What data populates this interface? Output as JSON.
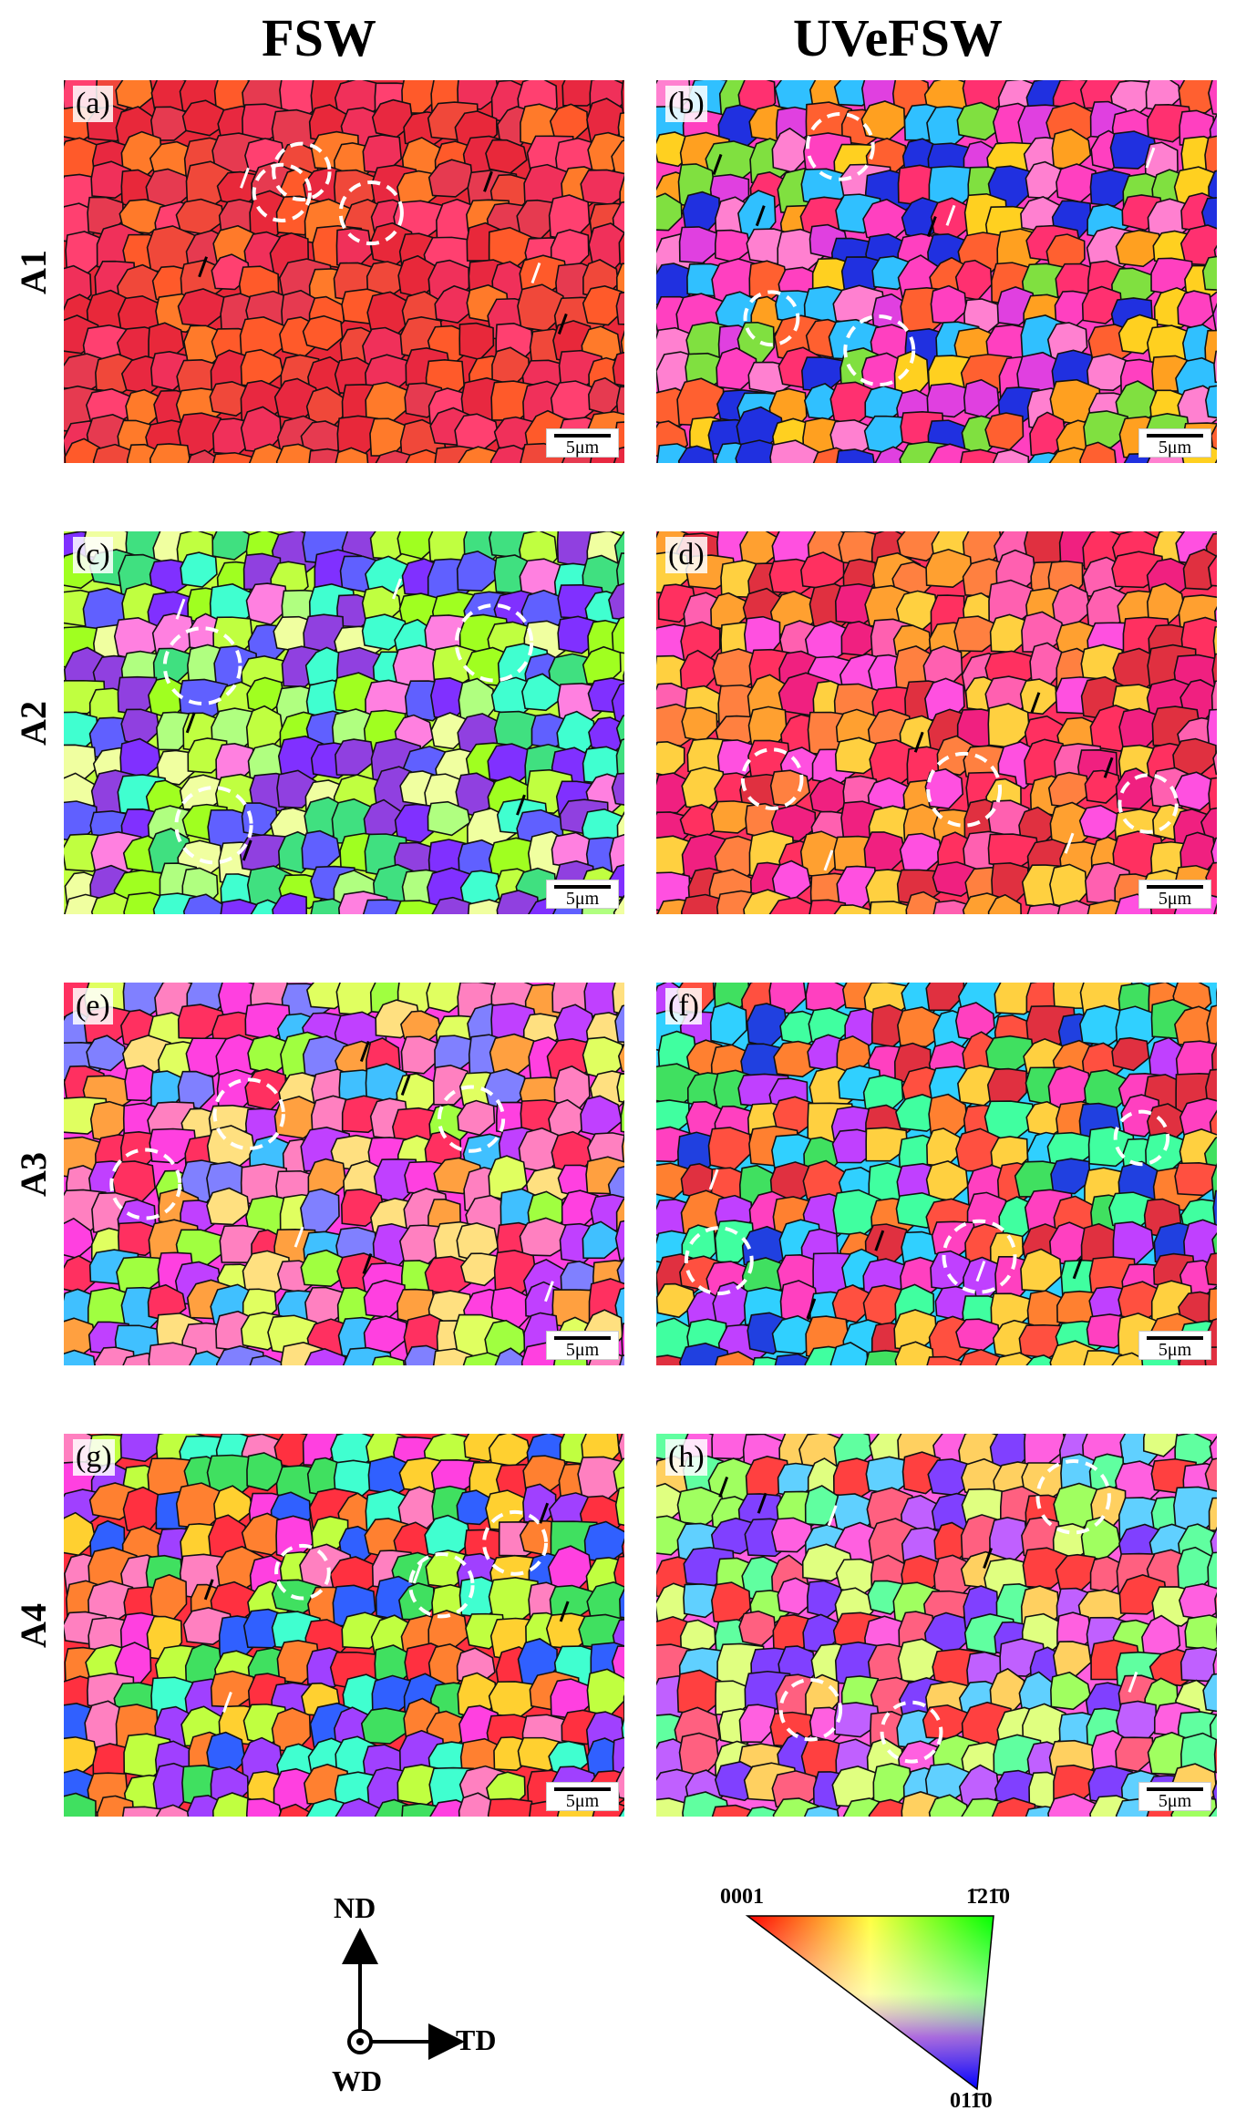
{
  "headers": {
    "left": "FSW",
    "right": "UVeFSW"
  },
  "rows": [
    "A1",
    "A2",
    "A3",
    "A4"
  ],
  "panels": [
    {
      "label": "(a)",
      "scale": "5μm",
      "palette": [
        "#e8283a",
        "#f0483a",
        "#ff5a2a",
        "#e63a50",
        "#ff7a2a",
        "#f0305a",
        "#ff4070",
        "#e82840"
      ]
    },
    {
      "label": "(b)",
      "scale": "5μm",
      "palette": [
        "#ff40c0",
        "#ffd020",
        "#ff6030",
        "#e040e0",
        "#ff3070",
        "#30c0ff",
        "#2030e0",
        "#ffa020",
        "#80e040",
        "#ff80d0"
      ]
    },
    {
      "label": "(c)",
      "scale": "5μm",
      "palette": [
        "#c0ff40",
        "#8030ff",
        "#40e080",
        "#b0ff80",
        "#6060ff",
        "#ff80e0",
        "#a0ff20",
        "#40ffd0",
        "#9040e0",
        "#f0ffa0"
      ]
    },
    {
      "label": "(d)",
      "scale": "5μm",
      "palette": [
        "#ff3060",
        "#ff60b0",
        "#ffa030",
        "#e03040",
        "#ff50e0",
        "#ff8040",
        "#ffd040",
        "#f02080"
      ]
    },
    {
      "label": "(e)",
      "scale": "5μm",
      "palette": [
        "#ff40e0",
        "#c040ff",
        "#ffa040",
        "#a0ff40",
        "#ff3060",
        "#ffe080",
        "#40c0ff",
        "#ff80c0",
        "#e0ff60",
        "#8080ff"
      ]
    },
    {
      "label": "(f)",
      "scale": "5μm",
      "palette": [
        "#30d0ff",
        "#2040e0",
        "#ff5040",
        "#40e060",
        "#ff40c0",
        "#ffd040",
        "#c040ff",
        "#ff8030",
        "#40ffa0",
        "#e03040"
      ]
    },
    {
      "label": "(g)",
      "scale": "5μm",
      "palette": [
        "#ff3040",
        "#ff40e0",
        "#40e060",
        "#ffd030",
        "#3060ff",
        "#ff8030",
        "#c0ff40",
        "#a040ff",
        "#ff80c0",
        "#40ffd0"
      ]
    },
    {
      "label": "(h)",
      "scale": "5μm",
      "palette": [
        "#ff60e0",
        "#c060ff",
        "#a0ff60",
        "#ffd060",
        "#ff6080",
        "#60d0ff",
        "#e0ff80",
        "#8040ff",
        "#ff4040",
        "#60ffa0"
      ]
    }
  ],
  "axes": {
    "up": "ND",
    "right": "TD",
    "origin": "WD"
  },
  "ipf_legend": {
    "c0001": "0001",
    "c1210": "1̄21̄0",
    "c0110": "011̄0"
  }
}
